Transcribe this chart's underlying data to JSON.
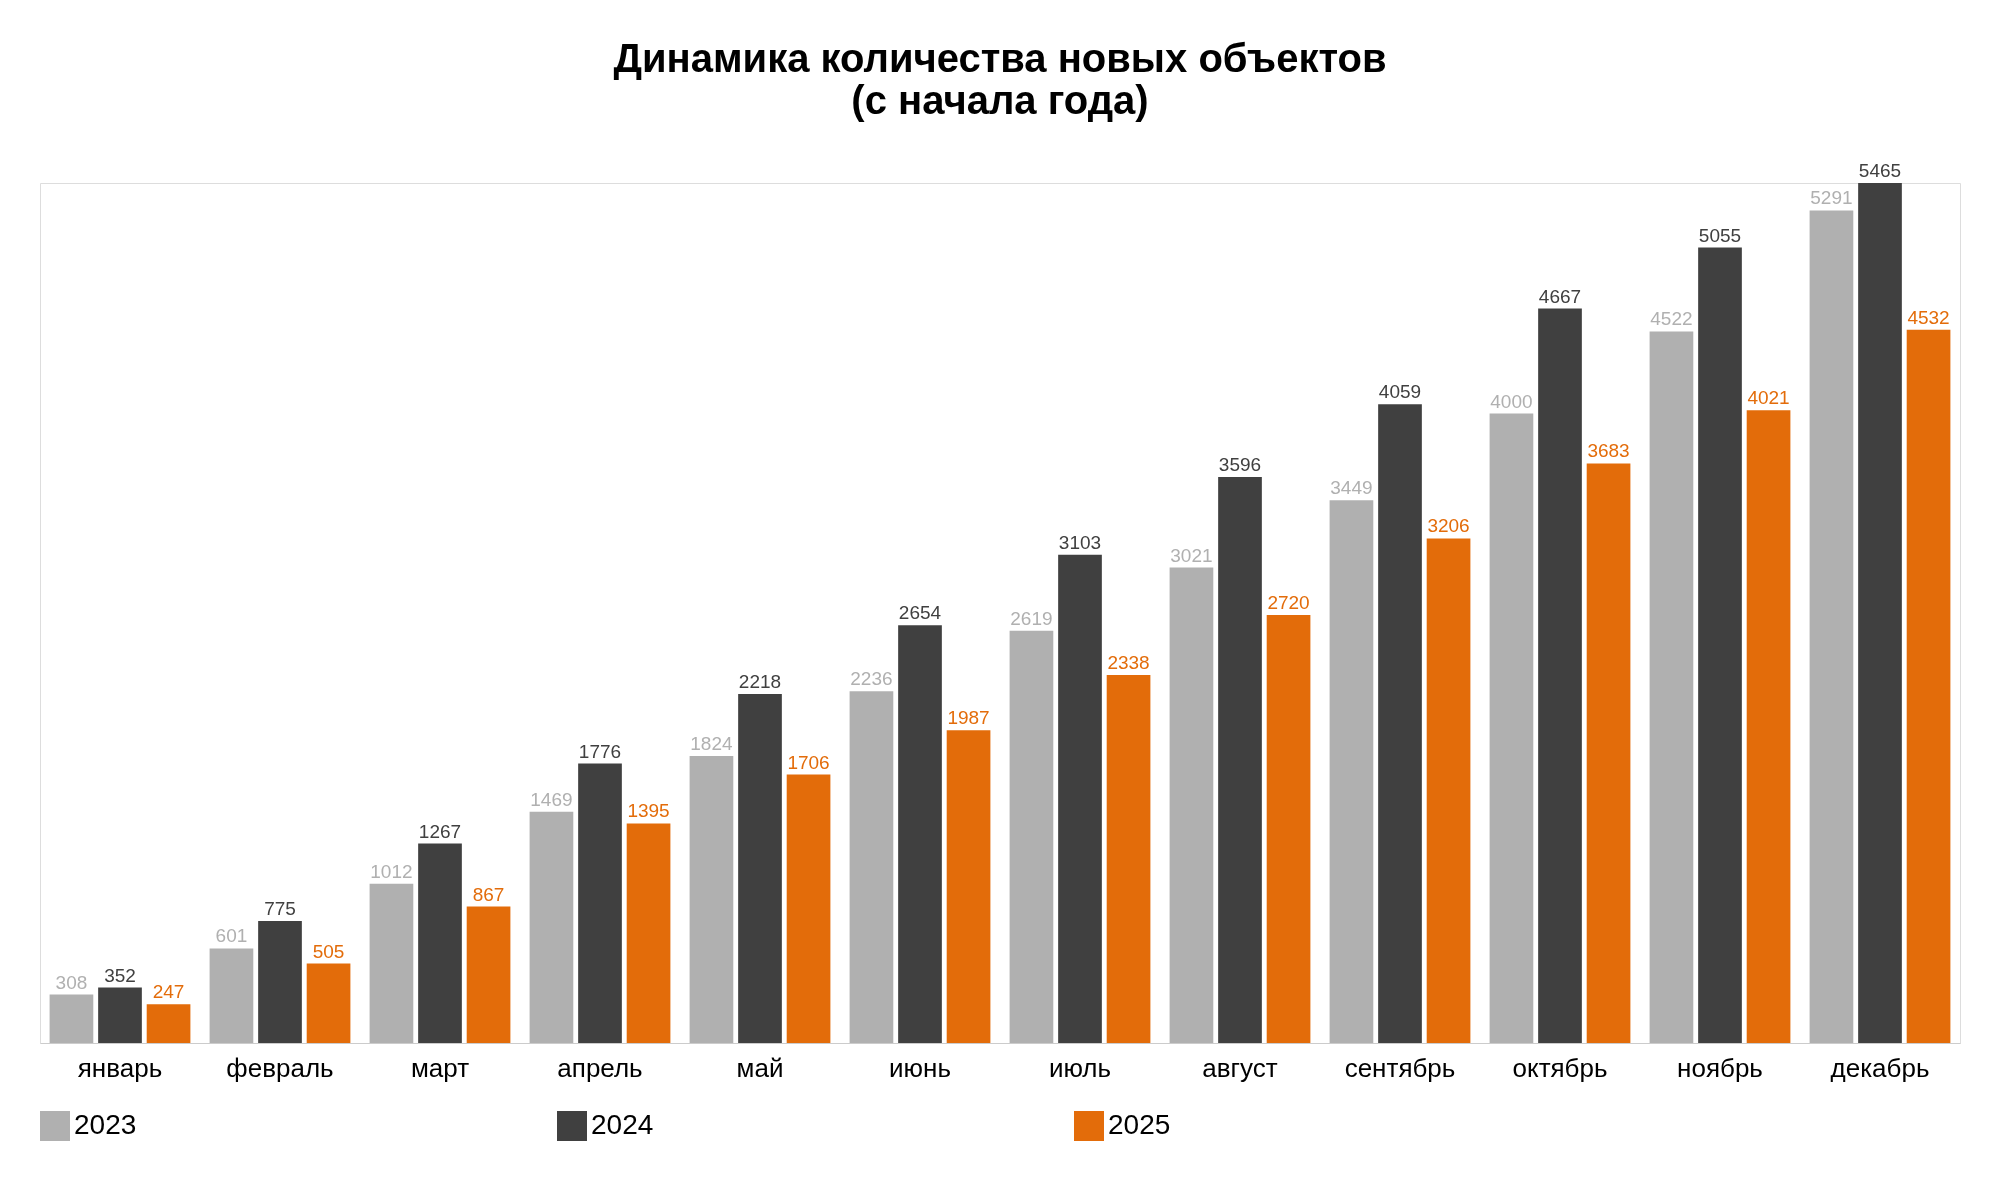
{
  "chart_data": {
    "type": "bar",
    "title": "Динамика количества новых объектов\n(с начала года)",
    "categories": [
      "январь",
      "февраль",
      "март",
      "апрель",
      "май",
      "июнь",
      "июль",
      "август",
      "сентябрь",
      "октябрь",
      "ноябрь",
      "декабрь"
    ],
    "series": [
      {
        "name": "2023",
        "color": "#b0b0b0",
        "values": [
          308,
          601,
          1012,
          1469,
          1824,
          2236,
          2619,
          3021,
          3449,
          4000,
          4522,
          5291
        ]
      },
      {
        "name": "2024",
        "color": "#404040",
        "values": [
          352,
          775,
          1267,
          1776,
          2218,
          2654,
          3103,
          3596,
          4059,
          4667,
          5055,
          5465
        ]
      },
      {
        "name": "2025",
        "color": "#e36c0a",
        "values": [
          247,
          505,
          867,
          1395,
          1706,
          1987,
          2338,
          2720,
          3206,
          3683,
          4021,
          4532
        ]
      }
    ],
    "data_labels": true,
    "legend": "bottom",
    "grid": false
  }
}
